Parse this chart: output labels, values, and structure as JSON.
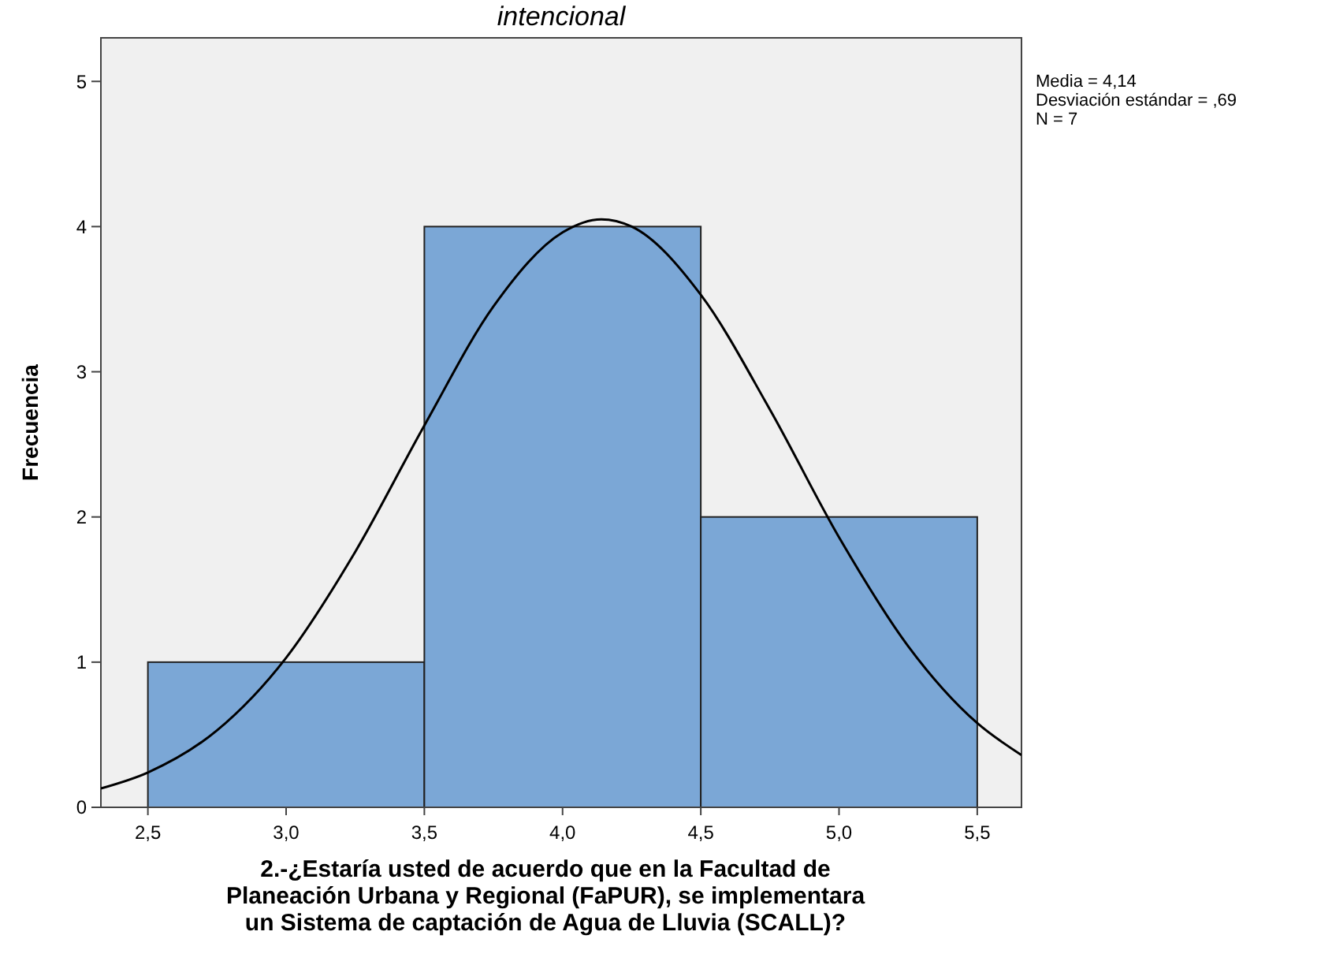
{
  "chart_data": {
    "type": "histogram",
    "title": "intencional",
    "xlabel": "2.-¿Estaría usted de acuerdo que en la Facultad de\nPlaneación Urbana y Regional (FaPUR), se implementara\nun Sistema de captación de Agua de Lluvia (SCALL)?",
    "ylabel": "Frecuencia",
    "annotations": [
      "Media = 4,14\nDesviación estándar = ,69\nN = 7"
    ],
    "series": [
      {
        "bins": [
          2.5,
          3.5,
          4.5,
          5.5
        ],
        "values": [
          1,
          4,
          2
        ],
        "color": "#7ba7d6"
      },
      {
        "type": "line",
        "color": "#000000",
        "x": [
          2.33,
          2.5,
          2.75,
          3.0,
          3.25,
          3.5,
          3.75,
          4.0,
          4.14,
          4.25,
          4.5,
          4.75,
          5.0,
          5.25,
          5.5,
          5.66
        ],
        "values": [
          0.13,
          0.24,
          0.53,
          1.03,
          1.76,
          2.63,
          3.45,
          3.96,
          4.05,
          4.0,
          3.53,
          2.74,
          1.86,
          1.11,
          0.58,
          0.36
        ]
      }
    ],
    "xlim": [
      2.33,
      5.66
    ],
    "ylim": [
      0,
      5.3
    ],
    "xticks": [
      {
        "value": 2.5,
        "label": "2,5"
      },
      {
        "value": 3,
        "label": "3,0"
      },
      {
        "value": 3.5,
        "label": "3,5"
      },
      {
        "value": 4,
        "label": "4,0"
      },
      {
        "value": 4.5,
        "label": "4,5"
      },
      {
        "value": 5,
        "label": "5,0"
      },
      {
        "value": 5.5,
        "label": "5,5"
      }
    ],
    "yticks": [
      0,
      1,
      2,
      3,
      4,
      5
    ],
    "grid": false
  }
}
